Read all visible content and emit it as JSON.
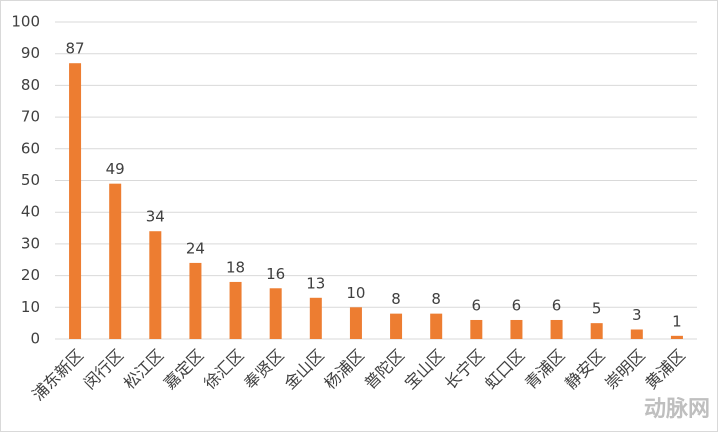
{
  "chart_data": {
    "type": "bar",
    "categories": [
      "浦东新区",
      "闵行区",
      "松江区",
      "嘉定区",
      "徐汇区",
      "奉贤区",
      "金山区",
      "杨浦区",
      "普陀区",
      "宝山区",
      "长宁区",
      "虹口区",
      "青浦区",
      "静安区",
      "崇明区",
      "黄浦区"
    ],
    "values": [
      87,
      49,
      34,
      24,
      18,
      16,
      13,
      10,
      8,
      8,
      6,
      6,
      6,
      5,
      3,
      1
    ],
    "color": "#ed7d31",
    "ylim": [
      0,
      100
    ],
    "yticks": [
      0,
      10,
      20,
      30,
      40,
      50,
      60,
      70,
      80,
      90,
      100
    ],
    "grid": true,
    "data_labels": true,
    "watermark": "动脉网"
  }
}
